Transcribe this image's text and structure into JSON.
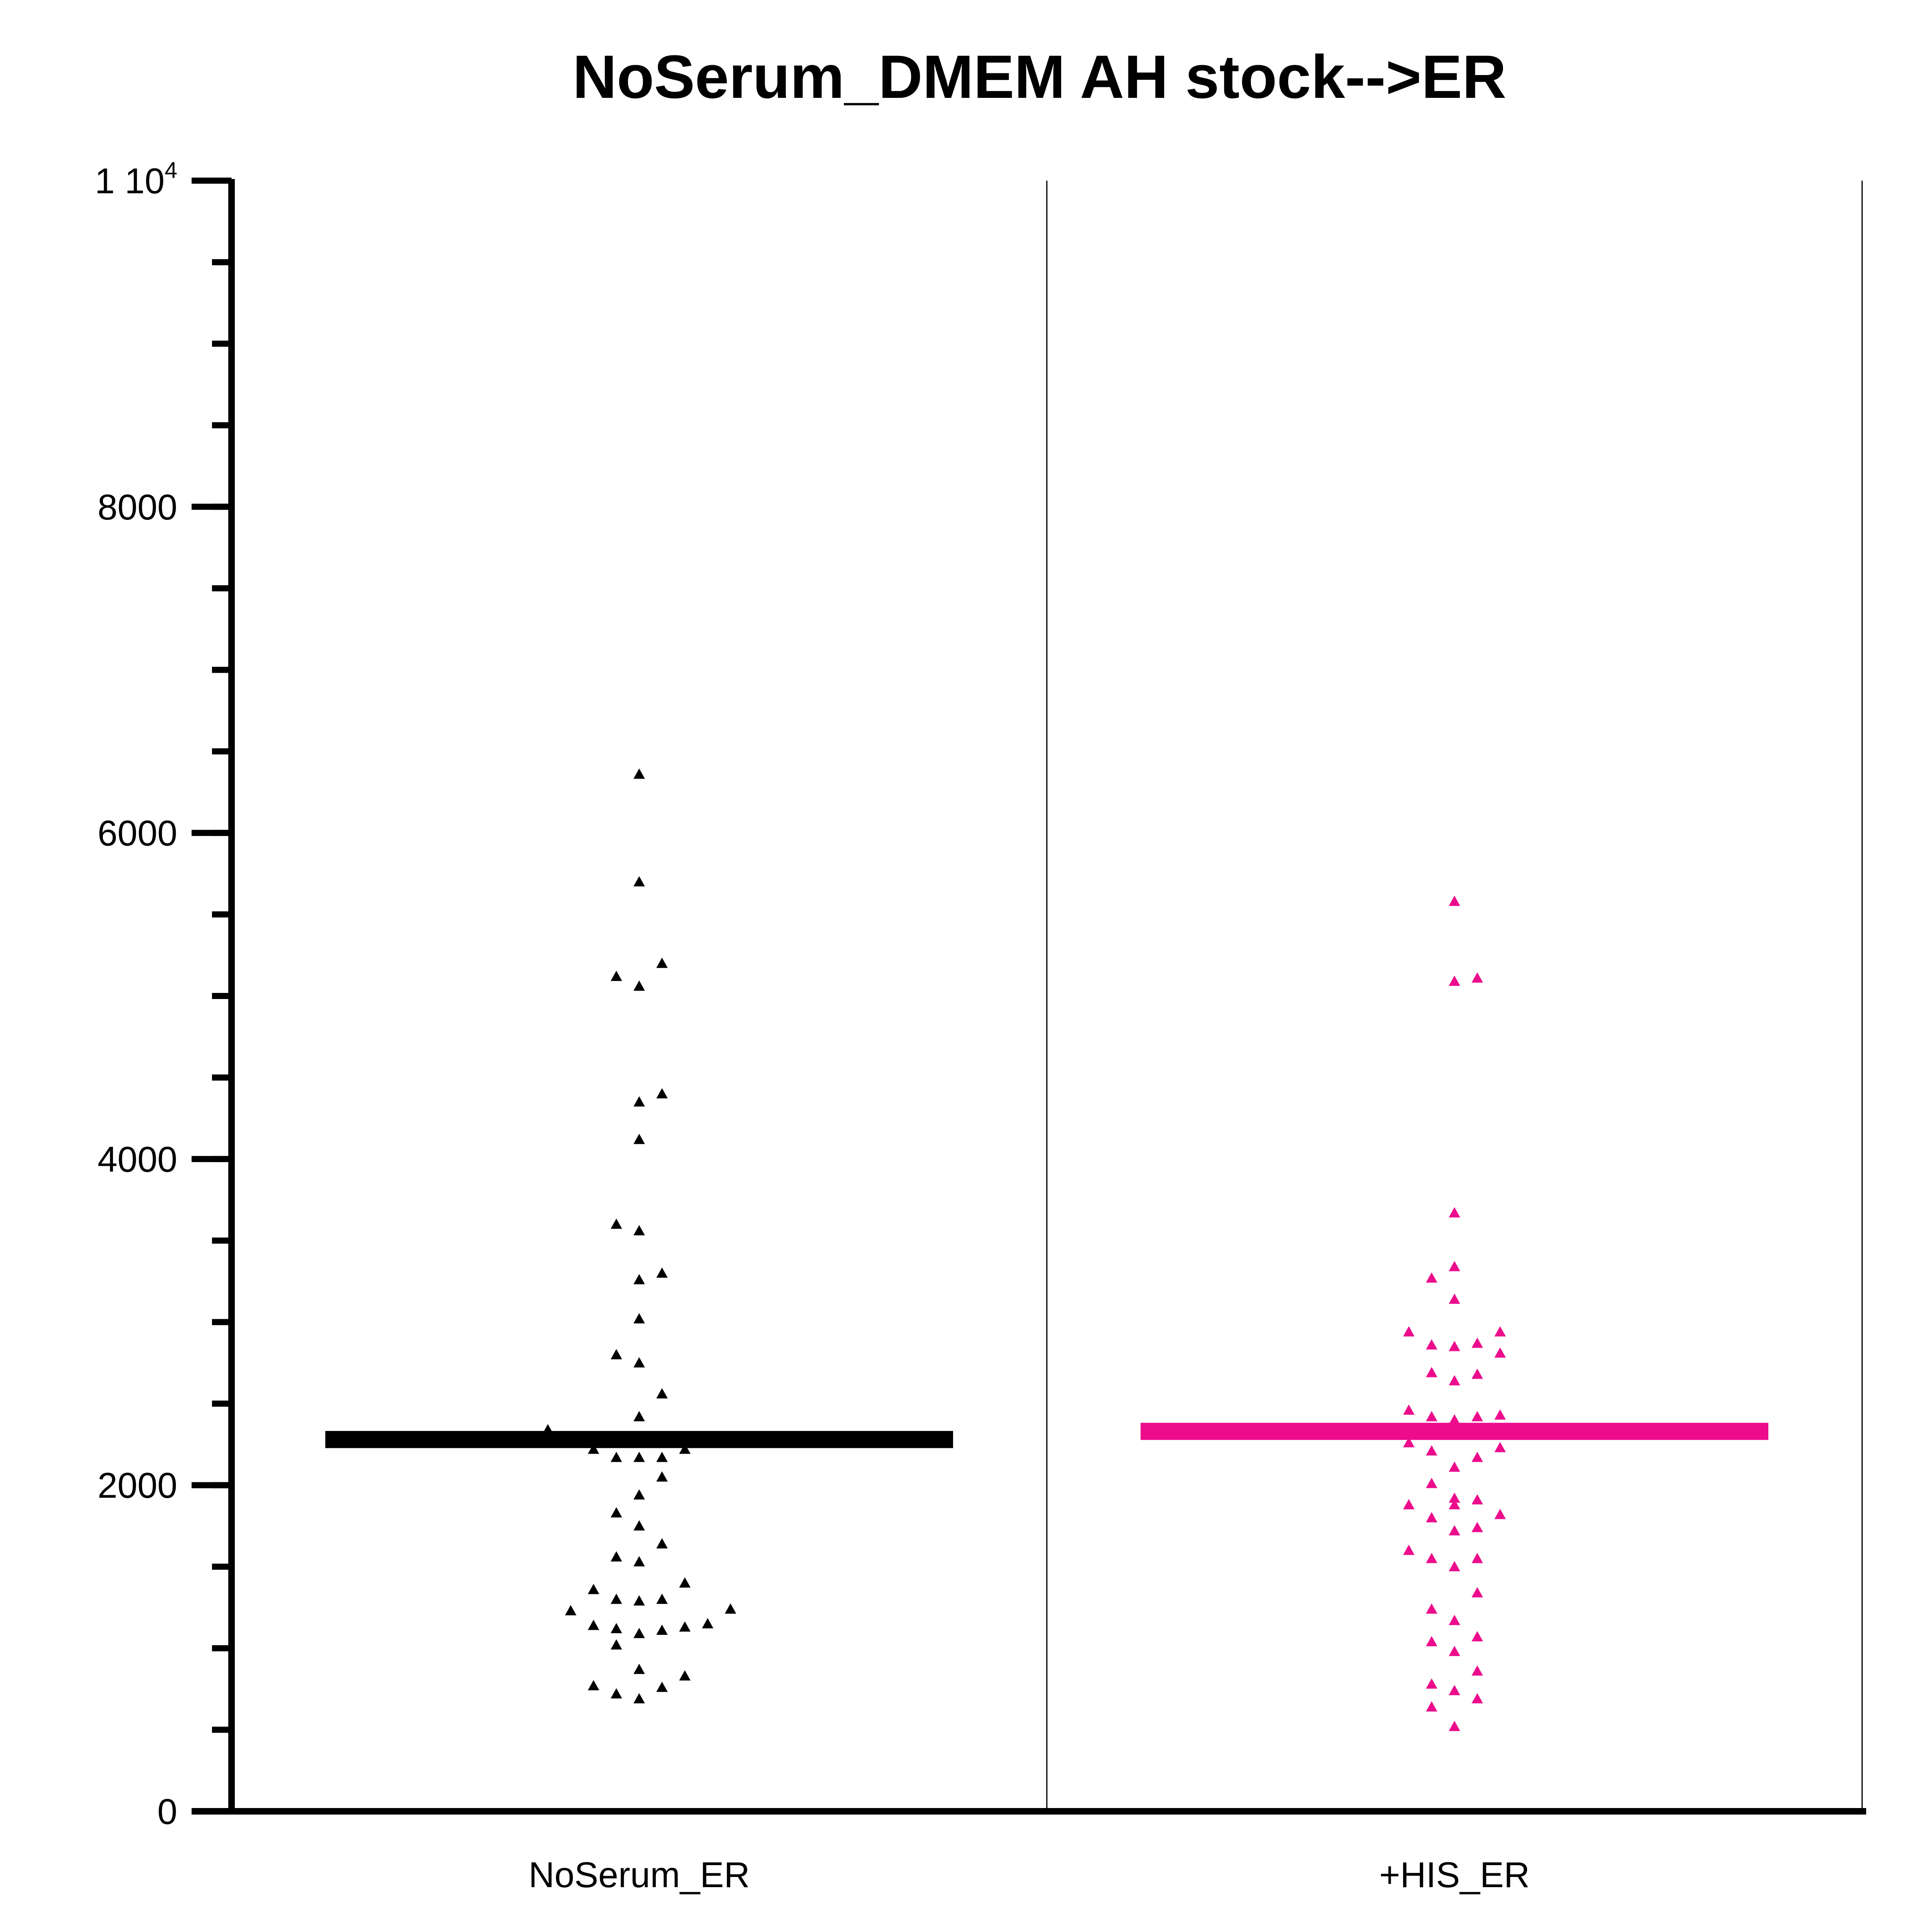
{
  "chart_data": {
    "type": "scatter",
    "title": "NoSerum_DMEM AH stock-->ER",
    "xlabel": "",
    "ylabel": "",
    "ylim": [
      0,
      10000
    ],
    "y_ticks": [
      {
        "value": 0,
        "label": "0"
      },
      {
        "value": 2000,
        "label": "2000"
      },
      {
        "value": 4000,
        "label": "4000"
      },
      {
        "value": 6000,
        "label": "6000"
      },
      {
        "value": 8000,
        "label": "8000"
      },
      {
        "value": 10000,
        "label": "1 10",
        "sup": "4"
      }
    ],
    "y_minor_step": 500,
    "grid": false,
    "categories": [
      "NoSerum_ER",
      "+HIS_ER"
    ],
    "series": [
      {
        "category": "NoSerum_ER",
        "color": "#000000",
        "marker": "triangle",
        "mean": 2280,
        "points": [
          [
            0,
            6360
          ],
          [
            0,
            5700
          ],
          [
            1,
            5200
          ],
          [
            -1,
            5120
          ],
          [
            0,
            5060
          ],
          [
            1,
            4400
          ],
          [
            0,
            4350
          ],
          [
            0,
            4120
          ],
          [
            -1,
            3600
          ],
          [
            0,
            3560
          ],
          [
            1,
            3300
          ],
          [
            0,
            3260
          ],
          [
            0,
            3020
          ],
          [
            -1,
            2800
          ],
          [
            0,
            2750
          ],
          [
            1,
            2560
          ],
          [
            0,
            2420
          ],
          [
            -4,
            2340
          ],
          [
            -2,
            2220
          ],
          [
            -1,
            2170
          ],
          [
            0,
            2170
          ],
          [
            1,
            2170
          ],
          [
            2,
            2220
          ],
          [
            1,
            2050
          ],
          [
            0,
            1940
          ],
          [
            -1,
            1830
          ],
          [
            0,
            1750
          ],
          [
            1,
            1640
          ],
          [
            -1,
            1560
          ],
          [
            0,
            1530
          ],
          [
            2,
            1400
          ],
          [
            -2,
            1360
          ],
          [
            -1,
            1300
          ],
          [
            0,
            1290
          ],
          [
            1,
            1300
          ],
          [
            -3,
            1230
          ],
          [
            4,
            1240
          ],
          [
            -2,
            1140
          ],
          [
            -1,
            1120
          ],
          [
            0,
            1090
          ],
          [
            1,
            1110
          ],
          [
            2,
            1130
          ],
          [
            3,
            1150
          ],
          [
            -1,
            1020
          ],
          [
            0,
            870
          ],
          [
            2,
            830
          ],
          [
            -2,
            770
          ],
          [
            1,
            760
          ],
          [
            -1,
            720
          ],
          [
            0,
            690
          ]
        ]
      },
      {
        "category": "+HIS_ER",
        "color": "#ec0c8c",
        "marker": "triangle",
        "mean": 2330,
        "points": [
          [
            0,
            5580
          ],
          [
            0,
            5090
          ],
          [
            1,
            5110
          ],
          [
            0,
            3670
          ],
          [
            0,
            3340
          ],
          [
            -1,
            3270
          ],
          [
            0,
            3140
          ],
          [
            -2,
            2940
          ],
          [
            2,
            2940
          ],
          [
            -1,
            2860
          ],
          [
            0,
            2850
          ],
          [
            1,
            2870
          ],
          [
            2,
            2810
          ],
          [
            -1,
            2690
          ],
          [
            0,
            2640
          ],
          [
            1,
            2680
          ],
          [
            -2,
            2460
          ],
          [
            -1,
            2420
          ],
          [
            0,
            2400
          ],
          [
            1,
            2420
          ],
          [
            2,
            2430
          ],
          [
            -2,
            2260
          ],
          [
            -1,
            2210
          ],
          [
            0,
            2110
          ],
          [
            1,
            2170
          ],
          [
            2,
            2230
          ],
          [
            -1,
            2010
          ],
          [
            0,
            1920
          ],
          [
            -2,
            1880
          ],
          [
            0,
            1880
          ],
          [
            1,
            1910
          ],
          [
            2,
            1820
          ],
          [
            -1,
            1800
          ],
          [
            0,
            1720
          ],
          [
            1,
            1740
          ],
          [
            -2,
            1600
          ],
          [
            -1,
            1550
          ],
          [
            0,
            1500
          ],
          [
            1,
            1550
          ],
          [
            1,
            1340
          ],
          [
            -1,
            1240
          ],
          [
            0,
            1170
          ],
          [
            -1,
            1040
          ],
          [
            1,
            1070
          ],
          [
            0,
            980
          ],
          [
            1,
            860
          ],
          [
            -1,
            780
          ],
          [
            0,
            740
          ],
          [
            1,
            690
          ],
          [
            -1,
            640
          ],
          [
            0,
            520
          ]
        ]
      }
    ]
  }
}
